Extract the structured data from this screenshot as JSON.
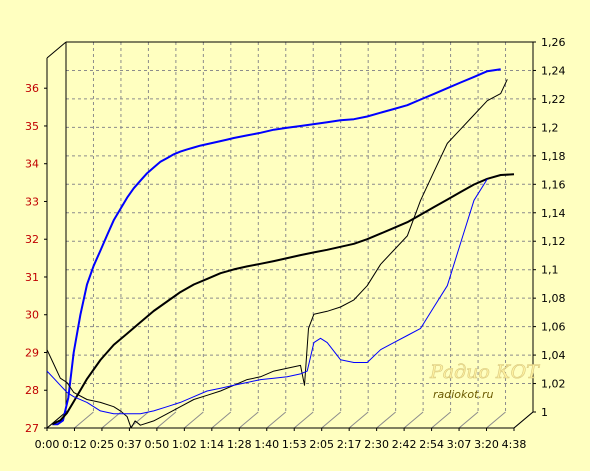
{
  "chart_data": {
    "type": "line",
    "colors": {
      "background": "#ffffc0",
      "grid": "#8c8c8c",
      "left_axis_text": "#c00000",
      "right_axis_text": "#000000",
      "series_blue": "#0000ff",
      "series_black": "#000000"
    },
    "grid": true,
    "left_axis": {
      "ylim": [
        27,
        36.8
      ],
      "ticks": [
        "27",
        "28",
        "29",
        "30",
        "31",
        "32",
        "33",
        "34",
        "35",
        "36"
      ]
    },
    "right_axis": {
      "ylim": [
        1,
        1.26
      ],
      "ticks": [
        "1",
        "1,02",
        "1,04",
        "1,06",
        "1,08",
        "1,1",
        "1,12",
        "1,14",
        "1,16",
        "1,18",
        "1,2",
        "1,22",
        "1,24",
        "1,26"
      ]
    },
    "x_axis": {
      "xlim": [
        0,
        35
      ],
      "ticks": [
        "0:00",
        "0:12",
        "0:25",
        "0:37",
        "0:50",
        "1:02",
        "1:14",
        "1:28",
        "1:40",
        "1:53",
        "2:05",
        "2:17",
        "2:30",
        "2:42",
        "2:54",
        "3:07",
        "3:20",
        "4:38"
      ]
    },
    "series": [
      {
        "axis": "left",
        "color": "#0000ff",
        "width": 2,
        "x": [
          0.4,
          0.8,
          1.2,
          1.6,
          2.0,
          2.5,
          3,
          3.5,
          4,
          4.5,
          5,
          5.5,
          6,
          6.5,
          7,
          7.5,
          8,
          8.5,
          9,
          9.5,
          10,
          10.5,
          11,
          11.5,
          12,
          12.5,
          13,
          13.5,
          14,
          15,
          16,
          17,
          18,
          19,
          20,
          21,
          22,
          23,
          24,
          25,
          26,
          27,
          28,
          29,
          30,
          31,
          32,
          33,
          34
        ],
        "y": [
          27.1,
          27.1,
          27.2,
          27.8,
          29.0,
          30.0,
          30.8,
          31.3,
          31.7,
          32.1,
          32.5,
          32.8,
          33.1,
          33.35,
          33.55,
          33.75,
          33.9,
          34.05,
          34.15,
          34.25,
          34.32,
          34.38,
          34.43,
          34.48,
          34.52,
          34.56,
          34.6,
          34.64,
          34.68,
          34.75,
          34.82,
          34.9,
          34.95,
          35.0,
          35.05,
          35.1,
          35.15,
          35.18,
          35.25,
          35.35,
          35.45,
          35.55,
          35.7,
          35.85,
          36.0,
          36.15,
          36.3,
          36.45,
          36.5
        ]
      },
      {
        "axis": "left",
        "color": "#000000",
        "width": 2,
        "x": [
          0.4,
          1,
          1.5,
          2,
          3,
          4,
          5,
          6,
          7,
          8,
          9,
          10,
          11,
          12,
          13,
          14,
          15,
          16,
          17,
          18,
          19,
          20,
          21,
          22,
          23,
          24,
          25,
          26,
          27,
          28,
          29,
          30,
          31,
          32,
          33,
          34,
          35
        ],
        "y": [
          27.1,
          27.2,
          27.4,
          27.7,
          28.3,
          28.8,
          29.2,
          29.5,
          29.8,
          30.1,
          30.35,
          30.6,
          30.8,
          30.95,
          31.1,
          31.2,
          31.28,
          31.35,
          31.42,
          31.5,
          31.58,
          31.65,
          31.72,
          31.8,
          31.88,
          32.0,
          32.15,
          32.3,
          32.45,
          32.65,
          32.85,
          33.05,
          33.25,
          33.45,
          33.6,
          33.7,
          33.72
        ]
      },
      {
        "axis": "right",
        "color": "#000000",
        "width": 1,
        "x": [
          0,
          0.5,
          1,
          1.5,
          2,
          3,
          4,
          5,
          5.5,
          6,
          6.3,
          6.6,
          7,
          8,
          9,
          10,
          11,
          12,
          13,
          14,
          15,
          16,
          17,
          18,
          19,
          19.3,
          19.6,
          20,
          21,
          22,
          23,
          24,
          25,
          26,
          27,
          28,
          29,
          30,
          31,
          32,
          33,
          34,
          34.5
        ],
        "y": [
          1.055,
          1.045,
          1.035,
          1.032,
          1.025,
          1.02,
          1.018,
          1.015,
          1.012,
          1.008,
          1.0,
          1.005,
          1.002,
          1.005,
          1.01,
          1.015,
          1.02,
          1.023,
          1.026,
          1.03,
          1.034,
          1.036,
          1.04,
          1.042,
          1.044,
          1.03,
          1.07,
          1.08,
          1.082,
          1.085,
          1.09,
          1.1,
          1.115,
          1.125,
          1.135,
          1.16,
          1.18,
          1.2,
          1.21,
          1.22,
          1.23,
          1.235,
          1.245
        ]
      },
      {
        "axis": "right",
        "color": "#0000ff",
        "width": 1,
        "x": [
          0,
          0.5,
          1,
          1.5,
          2,
          3,
          4,
          5,
          6,
          7,
          8,
          9,
          10,
          11,
          12,
          13,
          14,
          15,
          16,
          17,
          18,
          19,
          19.5,
          20,
          20.5,
          21,
          22,
          23,
          24,
          25,
          26,
          27,
          28,
          29,
          30,
          31,
          32,
          33
        ],
        "y": [
          1.04,
          1.035,
          1.03,
          1.025,
          1.022,
          1.018,
          1.012,
          1.01,
          1.01,
          1.01,
          1.012,
          1.015,
          1.018,
          1.022,
          1.026,
          1.028,
          1.03,
          1.032,
          1.034,
          1.035,
          1.036,
          1.038,
          1.04,
          1.06,
          1.063,
          1.06,
          1.048,
          1.046,
          1.046,
          1.055,
          1.06,
          1.065,
          1.07,
          1.085,
          1.1,
          1.13,
          1.16,
          1.175
        ]
      }
    ]
  }
}
